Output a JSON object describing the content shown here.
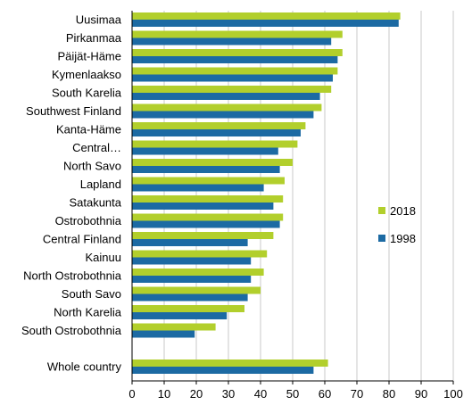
{
  "chart_data": {
    "type": "bar",
    "orientation": "horizontal",
    "categories": [
      "Uusimaa",
      "Pirkanmaa",
      "Päijät-Häme",
      "Kymenlaakso",
      "South Karelia",
      "Southwest Finland",
      "Kanta-Häme",
      "Central…",
      "North Savo",
      "Lapland",
      "Satakunta",
      "Ostrobothnia",
      "Central Finland",
      "Kainuu",
      "North Ostrobothnia",
      "South Savo",
      "North Karelia",
      "South Ostrobothnia",
      "Whole country"
    ],
    "series": [
      {
        "name": "2018",
        "color": "#b2cf2c",
        "values": [
          83.5,
          65.5,
          65.5,
          64,
          62,
          59,
          54,
          51.5,
          50,
          47.5,
          47,
          47,
          44,
          42,
          41,
          40,
          35,
          26,
          61
        ]
      },
      {
        "name": "1998",
        "color": "#1c6aa3",
        "values": [
          83,
          62,
          64,
          62.5,
          58.5,
          56.5,
          52.5,
          45.5,
          46,
          41,
          44,
          46,
          36,
          37,
          37,
          36,
          29.5,
          19.5,
          56.5
        ]
      }
    ],
    "xlim": [
      0,
      100
    ],
    "xticks": [
      0,
      10,
      20,
      30,
      40,
      50,
      60,
      70,
      80,
      90,
      100
    ],
    "grid": "vertical",
    "legend_position": "right"
  }
}
